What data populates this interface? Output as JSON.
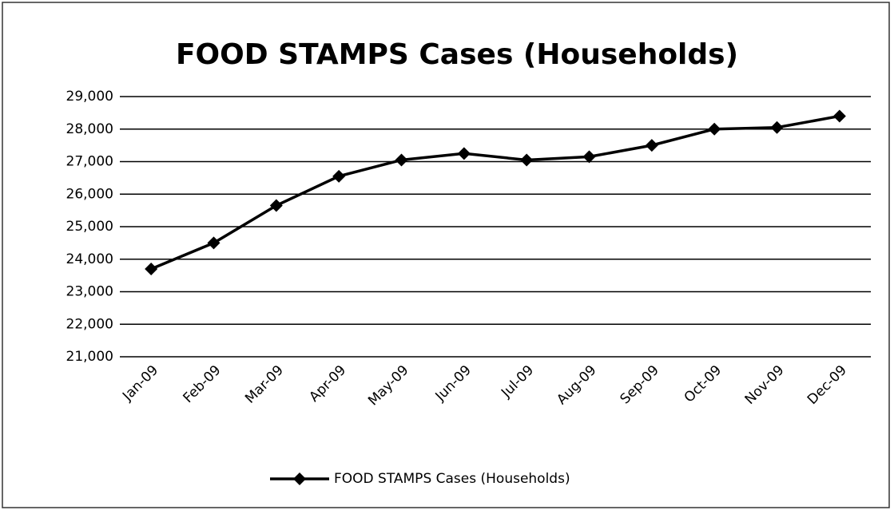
{
  "chart_data": {
    "type": "line",
    "title": "FOOD STAMPS Cases (Households)",
    "categories": [
      "Jan-09",
      "Feb-09",
      "Mar-09",
      "Apr-09",
      "May-09",
      "Jun-09",
      "Jul-09",
      "Aug-09",
      "Sep-09",
      "Oct-09",
      "Nov-09",
      "Dec-09"
    ],
    "series": [
      {
        "name": "FOOD STAMPS Cases (Households)",
        "color": "#000000",
        "values": [
          23700,
          24500,
          25650,
          26550,
          27050,
          27250,
          27050,
          27150,
          27500,
          28000,
          28050,
          28400
        ]
      }
    ],
    "ylim": [
      21000,
      29000
    ],
    "yticks": [
      {
        "value": 21000,
        "label": "21,000"
      },
      {
        "value": 22000,
        "label": "22,000"
      },
      {
        "value": 23000,
        "label": "23,000"
      },
      {
        "value": 24000,
        "label": "24,000"
      },
      {
        "value": 25000,
        "label": "25,000"
      },
      {
        "value": 26000,
        "label": "26,000"
      },
      {
        "value": 27000,
        "label": "27,000"
      },
      {
        "value": 28000,
        "label": "28,000"
      },
      {
        "value": 29000,
        "label": "29,000"
      }
    ],
    "grid": true,
    "legend": "bottom"
  }
}
